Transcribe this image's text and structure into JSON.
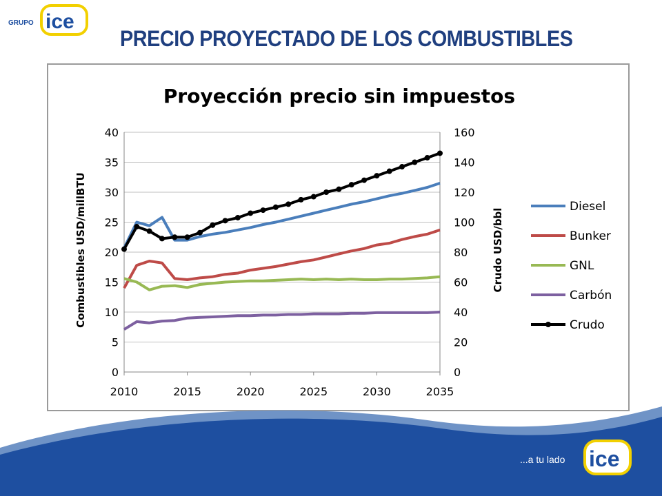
{
  "header": {
    "logo_group": "GRUPO",
    "logo_brand": "ice",
    "title": "PRECIO PROYECTADO DE LOS COMBUSTIBLES"
  },
  "footer": {
    "tagline": "...a tu lado",
    "logo_brand": "ice"
  },
  "colors": {
    "title_blue": "#1f3f7f",
    "brand_blue": "#1e4fa0",
    "brand_yellow": "#f2d000",
    "diesel": "#4a7ebb",
    "bunker": "#be4b48",
    "gnl": "#98b954",
    "carbon": "#7d60a0",
    "crudo": "#000000"
  },
  "chart_data": {
    "type": "line",
    "title": "Proyección precio sin impuestos",
    "ylabel": "Combustibles USD/millBTU",
    "y2label": "Crudo USD/bbl",
    "x_ticks": [
      2010,
      2015,
      2020,
      2025,
      2030,
      2035
    ],
    "y_ticks": [
      0,
      5,
      10,
      15,
      20,
      25,
      30,
      35,
      40
    ],
    "y2_ticks": [
      0,
      20,
      40,
      60,
      80,
      100,
      120,
      140,
      160
    ],
    "xlim": [
      2010,
      2035
    ],
    "ylim": [
      0,
      40
    ],
    "y2lim": [
      0,
      160
    ],
    "grid": "horizontal",
    "legend_position": "right",
    "x": [
      2010,
      2011,
      2012,
      2013,
      2014,
      2015,
      2016,
      2017,
      2018,
      2019,
      2020,
      2021,
      2022,
      2023,
      2024,
      2025,
      2026,
      2027,
      2028,
      2029,
      2030,
      2031,
      2032,
      2033,
      2034,
      2035
    ],
    "series": [
      {
        "name": "Diesel",
        "axis": "left",
        "color": "#4a7ebb",
        "markers": false,
        "values": [
          20.7,
          25.0,
          24.4,
          25.8,
          22.0,
          22.0,
          22.6,
          23.0,
          23.3,
          23.7,
          24.1,
          24.6,
          25.0,
          25.5,
          26.0,
          26.5,
          27.0,
          27.5,
          28.0,
          28.4,
          28.9,
          29.4,
          29.8,
          30.3,
          30.8,
          31.5
        ]
      },
      {
        "name": "Bunker",
        "axis": "left",
        "color": "#be4b48",
        "markers": false,
        "values": [
          14.0,
          17.8,
          18.5,
          18.2,
          15.6,
          15.4,
          15.7,
          15.9,
          16.3,
          16.5,
          17.0,
          17.3,
          17.6,
          18.0,
          18.4,
          18.7,
          19.2,
          19.7,
          20.2,
          20.6,
          21.2,
          21.5,
          22.1,
          22.6,
          23.0,
          23.7
        ]
      },
      {
        "name": "GNL",
        "axis": "left",
        "color": "#98b954",
        "markers": false,
        "values": [
          15.6,
          15.0,
          13.7,
          14.3,
          14.4,
          14.1,
          14.6,
          14.8,
          15.0,
          15.1,
          15.2,
          15.2,
          15.3,
          15.4,
          15.5,
          15.4,
          15.5,
          15.4,
          15.5,
          15.4,
          15.4,
          15.5,
          15.5,
          15.6,
          15.7,
          15.9
        ]
      },
      {
        "name": "Carbón",
        "axis": "left",
        "color": "#7d60a0",
        "markers": false,
        "values": [
          7.1,
          8.4,
          8.2,
          8.5,
          8.6,
          9.0,
          9.1,
          9.2,
          9.3,
          9.4,
          9.4,
          9.5,
          9.5,
          9.6,
          9.6,
          9.7,
          9.7,
          9.7,
          9.8,
          9.8,
          9.9,
          9.9,
          9.9,
          9.9,
          9.9,
          10.0
        ]
      },
      {
        "name": "Crudo",
        "axis": "right",
        "color": "#000000",
        "markers": true,
        "values": [
          82,
          97,
          94,
          89,
          90,
          90,
          93,
          98,
          101,
          103,
          106,
          108,
          110,
          112,
          115,
          117,
          120,
          122,
          125,
          128,
          131,
          134,
          137,
          140,
          143,
          146
        ]
      }
    ]
  }
}
